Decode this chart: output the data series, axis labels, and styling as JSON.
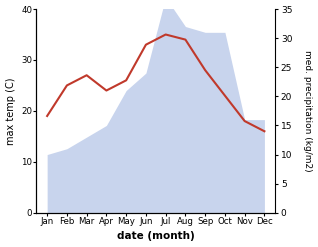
{
  "months": [
    "Jan",
    "Feb",
    "Mar",
    "Apr",
    "May",
    "Jun",
    "Jul",
    "Aug",
    "Sep",
    "Oct",
    "Nov",
    "Dec"
  ],
  "temperature": [
    19,
    25,
    27,
    24,
    26,
    33,
    35,
    34,
    28,
    23,
    18,
    16
  ],
  "precipitation": [
    10,
    11,
    13,
    15,
    21,
    24,
    37,
    32,
    31,
    31,
    16,
    16
  ],
  "temp_color": "#c0392b",
  "precip_color": "#c8d4ed",
  "left_ylim": [
    0,
    40
  ],
  "right_ylim": [
    0,
    35
  ],
  "left_yticks": [
    0,
    10,
    20,
    30,
    40
  ],
  "right_yticks": [
    0,
    5,
    10,
    15,
    20,
    25,
    30,
    35
  ],
  "xlabel": "date (month)",
  "ylabel_left": "max temp (C)",
  "ylabel_right": "med. precipitation (kg/m2)",
  "bg_color": "#ffffff"
}
